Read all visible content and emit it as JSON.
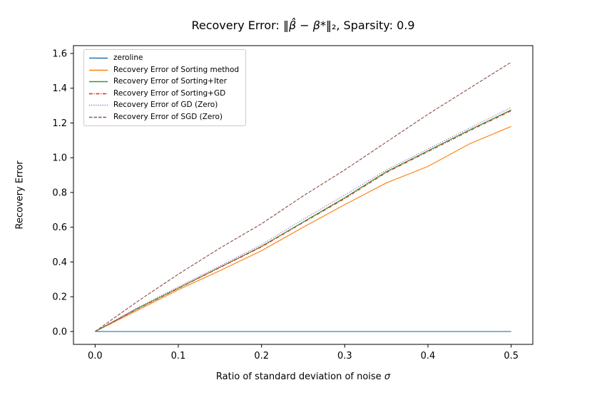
{
  "figure": {
    "title_pre": "Recovery Error: ",
    "title_norm_open": "‖",
    "title_math": "β̂ − β*",
    "title_norm_close": "‖₂",
    "title_post": ", Sparsity: 0.9",
    "xlabel_pre": "Ratio of standard deviation of noise ",
    "xlabel_sigma": "σ",
    "background": "#ffffff",
    "spine_color": "#000000",
    "text_color": "#000000"
  },
  "chart_data": {
    "type": "line",
    "title": "Recovery Error: ‖β̂ − β*‖₂, Sparsity: 0.9",
    "xlabel": "Ratio of standard deviation of noise σ",
    "ylabel": "Recovery Error",
    "xlim": [
      -0.026,
      0.526
    ],
    "ylim": [
      -0.074,
      1.645
    ],
    "xticks": [
      0.0,
      0.1,
      0.2,
      0.3,
      0.4,
      0.5
    ],
    "yticks": [
      0.0,
      0.2,
      0.4,
      0.6,
      0.8,
      1.0,
      1.2,
      1.4,
      1.6
    ],
    "grid": false,
    "legend_position": "upper left",
    "x": [
      0,
      0.05,
      0.1,
      0.15,
      0.2,
      0.25,
      0.3,
      0.35,
      0.4,
      0.45,
      0.5
    ],
    "series": [
      {
        "name": "zeroline",
        "color": "#1f77b4",
        "style": "solid",
        "values": [
          0,
          0,
          0,
          0,
          0,
          0,
          0,
          0,
          0,
          0,
          0
        ]
      },
      {
        "name": "Recovery Error of Sorting method",
        "color": "#ff7f0e",
        "style": "solid",
        "values": [
          0,
          0.12,
          0.24,
          0.35,
          0.465,
          0.6,
          0.73,
          0.855,
          0.95,
          1.08,
          1.18
        ]
      },
      {
        "name": "Recovery Error of Sorting+Iter",
        "color": "#2ca02c",
        "style": "solid",
        "values": [
          0,
          0.13,
          0.25,
          0.37,
          0.49,
          0.63,
          0.77,
          0.92,
          1.04,
          1.16,
          1.275
        ]
      },
      {
        "name": "Recovery Error of Sorting+GD",
        "color": "#d62728",
        "style": "dashdot",
        "values": [
          0,
          0.128,
          0.248,
          0.368,
          0.487,
          0.627,
          0.765,
          0.915,
          1.035,
          1.155,
          1.27
        ]
      },
      {
        "name": "Recovery Error of GD (Zero)",
        "color": "#9467bd",
        "style": "dotted",
        "values": [
          0,
          0.135,
          0.258,
          0.378,
          0.5,
          0.645,
          0.785,
          0.93,
          1.05,
          1.17,
          1.29
        ]
      },
      {
        "name": "Recovery Error of SGD (Zero)",
        "color": "#8c564b",
        "style": "dashed",
        "values": [
          0,
          0.17,
          0.33,
          0.48,
          0.62,
          0.78,
          0.93,
          1.09,
          1.25,
          1.4,
          1.55
        ]
      }
    ]
  }
}
